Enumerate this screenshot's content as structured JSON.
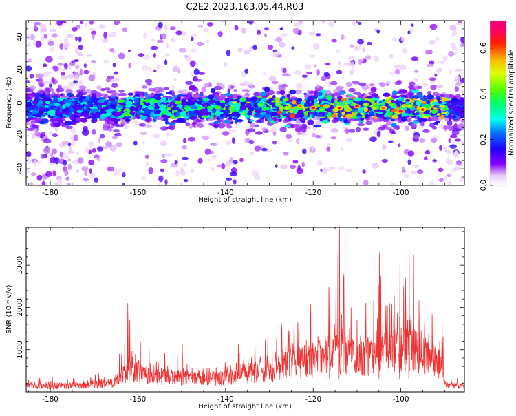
{
  "figure": {
    "title": "C2E2.2023.163.05.44.R03"
  },
  "chart_data": [
    {
      "type": "heatmap",
      "xlabel": "Height of straight line (km)",
      "ylabel": "Frequency (Hz)",
      "xlim": [
        -185.5,
        -85.5
      ],
      "ylim": [
        -50,
        50
      ],
      "xticks": [
        -180,
        -160,
        -140,
        -120,
        -100
      ],
      "yticks": [
        -40,
        -20,
        0,
        20,
        40
      ],
      "colormap": "gist_ncar (white to violet to blue to cyan to green to yellow to red to magenta)",
      "colorbar": {
        "label": "Normalized spectral amplitude",
        "range": [
          0,
          0.72
        ],
        "ticks": [
          0.0,
          0.2,
          0.4,
          0.6
        ]
      },
      "description_of_content": "Strong signal band centred near 0 Hz (about -10 to +5 Hz) spanning -185 to -86 km; highest amplitudes (0.4-0.7) between -130 and -95 km; scattered weak noise elsewhere, denser at both x-edges."
    },
    {
      "type": "line",
      "xlabel": "Height of straight line (km)",
      "ylabel": "SNR (10 * v/v)",
      "xlim": [
        -185.5,
        -85.5
      ],
      "ylim": [
        0,
        3900
      ],
      "xticks": [
        -180,
        -160,
        -140,
        -120,
        -100
      ],
      "yticks": [
        1000,
        2000,
        3000
      ],
      "line_color": "#ee3333",
      "envelope": {
        "x": [
          -185,
          -175,
          -170,
          -165,
          -163,
          -162,
          -160,
          -158,
          -155,
          -150,
          -145,
          -140,
          -135,
          -130,
          -125,
          -122,
          -120,
          -118,
          -116,
          -115,
          -114,
          -112,
          -110,
          -108,
          -106,
          -105,
          -104,
          -102,
          -100,
          -98,
          -97,
          -96,
          -94,
          -92,
          -90.5,
          -90,
          -88,
          -86
        ],
        "typical": [
          180,
          180,
          200,
          280,
          550,
          650,
          550,
          500,
          450,
          420,
          380,
          400,
          550,
          600,
          800,
          900,
          950,
          1000,
          1100,
          1200,
          1100,
          1100,
          1100,
          1050,
          1100,
          1200,
          1100,
          1100,
          1200,
          1400,
          1300,
          1100,
          1000,
          900,
          800,
          200,
          170,
          180
        ],
        "peak": [
          350,
          330,
          400,
          700,
          1500,
          2100,
          1300,
          1100,
          900,
          1150,
          950,
          900,
          1300,
          1400,
          1850,
          2000,
          2200,
          2300,
          2800,
          2600,
          3950,
          2100,
          2400,
          2200,
          2300,
          3300,
          2200,
          2100,
          3000,
          3450,
          3250,
          2400,
          2000,
          1900,
          1800,
          400,
          350,
          380
        ]
      }
    }
  ]
}
